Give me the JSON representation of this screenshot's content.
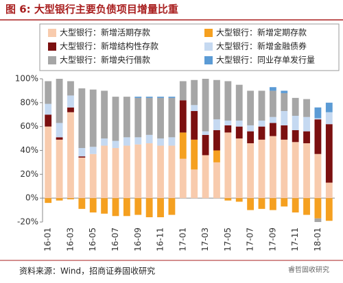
{
  "chart_data": {
    "type": "bar",
    "stacked": true,
    "title": "图 6: 大型银行主要负债项目增量比重",
    "source": "资料来源：Wind，招商证券固收研究",
    "watermark": "睿哲固收研究",
    "categories": [
      "16-01",
      null,
      "16-03",
      null,
      "16-05",
      null,
      "16-07",
      null,
      "16-09",
      null,
      "16-11",
      null,
      "17-01",
      null,
      "17-03",
      null,
      "17-05",
      null,
      "17-07",
      null,
      "17-09",
      null,
      "17-11",
      null,
      "18-01",
      null
    ],
    "series": [
      {
        "name": "大型银行：新增活期存款",
        "color": "#f8cbad",
        "values": [
          60,
          49,
          72,
          34,
          37,
          44,
          42,
          44,
          45,
          46,
          44,
          44,
          33,
          24,
          36,
          30,
          55,
          50,
          46,
          49,
          52,
          49,
          47,
          46,
          37,
          13
        ]
      },
      {
        "name": "大型银行：新增定期存款",
        "color": "#f5a020",
        "values": [
          -4,
          -2,
          -1,
          -9,
          -12,
          -13,
          -15,
          -15,
          -14,
          -16,
          -16,
          -14,
          22,
          25,
          0,
          10,
          -2,
          -3,
          -10,
          -9,
          -10,
          -7,
          -12,
          -14,
          -17,
          -19
        ]
      },
      {
        "name": "大型银行：新增结构性存款",
        "color": "#7b1010",
        "values": [
          10,
          2,
          4,
          1,
          0,
          0,
          0,
          0,
          0,
          0,
          0,
          0,
          27,
          24,
          17,
          17,
          6,
          10,
          10,
          11,
          11,
          12,
          10,
          10,
          29,
          49
        ]
      },
      {
        "name": "大型银行：新增金融债券",
        "color": "#c5d9f1",
        "values": [
          9,
          12,
          10,
          7,
          6,
          6,
          6,
          7,
          6,
          7,
          6,
          7,
          0,
          5,
          3,
          9,
          4,
          5,
          5,
          5,
          5,
          12,
          12,
          12,
          1,
          10
        ]
      },
      {
        "name": "大型银行：新增央行借款",
        "color": "#a6a6a6",
        "values": [
          19,
          37,
          12,
          50,
          48,
          40,
          37,
          34,
          33,
          31,
          34,
          33,
          16,
          21,
          44,
          33,
          33,
          30,
          29,
          25,
          22,
          15,
          15,
          15,
          -3,
          0
        ]
      },
      {
        "name": "大型银行：同业存单发行量",
        "color": "#5b9bd5",
        "values": [
          0,
          0,
          0,
          0,
          0,
          0,
          0,
          0,
          1,
          1,
          1,
          1,
          0,
          0,
          0,
          0,
          0,
          0,
          0,
          0,
          3,
          2,
          0,
          0,
          9,
          8
        ]
      }
    ],
    "ylim": [
      -20,
      100
    ],
    "yticks": [
      {
        "value": -20,
        "label": "-20%"
      },
      {
        "value": 0,
        "label": "0%"
      },
      {
        "value": 20,
        "label": "20%"
      },
      {
        "value": 40,
        "label": "40%"
      },
      {
        "value": 60,
        "label": "60%"
      },
      {
        "value": 80,
        "label": "80%"
      },
      {
        "value": 100,
        "label": "100%"
      }
    ],
    "grid": false
  }
}
